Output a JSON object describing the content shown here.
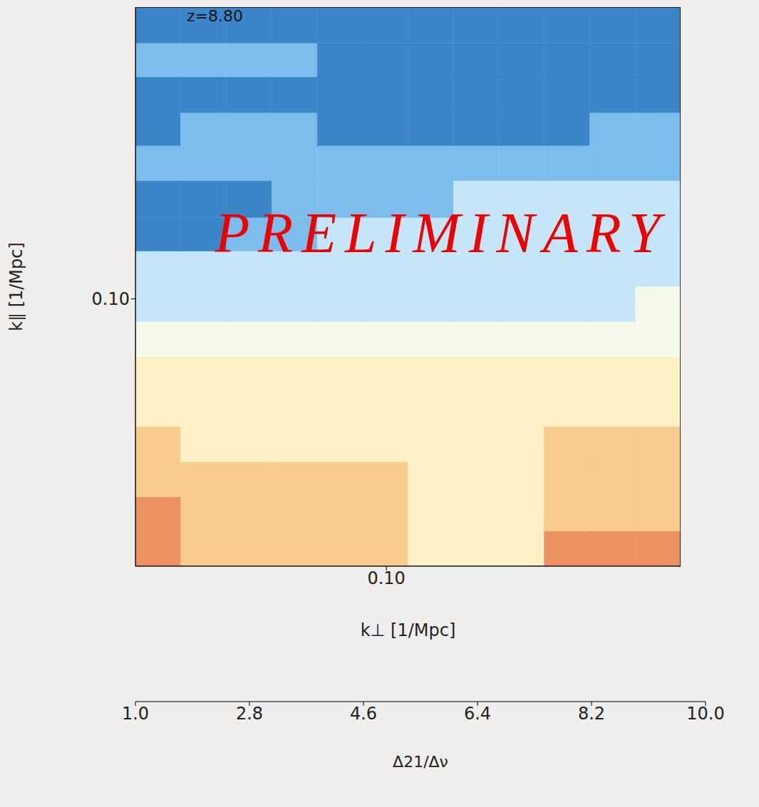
{
  "chart_data": {
    "type": "heatmap",
    "x_label": "k⊥ [1/Mpc]",
    "y_label": "k∥ [1/Mpc]",
    "annotations": [
      "z=8.80",
      "PRELIMINARY"
    ],
    "log": true,
    "xlim": [
      0.022,
      0.59
    ],
    "ylim": [
      0.065,
      0.16
    ],
    "xticks": [
      {
        "value": 0.1,
        "label": "0.10"
      }
    ],
    "yticks": [
      {
        "value": 0.1,
        "label": "0.10"
      }
    ],
    "x_edges": [
      0.022,
      0.0289,
      0.0381,
      0.0501,
      0.0659,
      0.0867,
      0.114,
      0.15,
      0.197,
      0.259,
      0.341,
      0.449,
      0.59
    ],
    "y_edges": [
      0.065,
      0.0688,
      0.0727,
      0.0769,
      0.0814,
      0.0861,
      0.0911,
      0.0964,
      0.102,
      0.108,
      0.114,
      0.121,
      0.128,
      0.135,
      0.143,
      0.151,
      0.16
    ],
    "cells": [
      [
        8.2,
        7.2,
        7.2,
        7.2,
        7.2,
        7.2,
        6.2,
        6.2,
        6.2,
        8.2,
        8.2,
        8.2
      ],
      [
        8.2,
        7.2,
        7.2,
        7.2,
        7.2,
        7.2,
        6.2,
        6.2,
        6.2,
        7.2,
        7.2,
        7.2
      ],
      [
        7.2,
        7.2,
        7.2,
        7.2,
        7.2,
        7.2,
        6.2,
        6.2,
        6.2,
        7.2,
        7.2,
        7.2
      ],
      [
        7.2,
        6.2,
        6.2,
        6.2,
        6.2,
        6.2,
        6.2,
        6.2,
        6.2,
        7.2,
        7.2,
        7.2
      ],
      [
        6.2,
        6.2,
        6.2,
        6.2,
        6.2,
        6.2,
        6.2,
        6.2,
        6.2,
        6.2,
        6.2,
        6.2
      ],
      [
        6.2,
        6.2,
        6.2,
        6.2,
        6.2,
        6.2,
        6.2,
        6.2,
        6.2,
        6.2,
        6.2,
        6.2
      ],
      [
        5.2,
        5.2,
        5.2,
        5.2,
        5.2,
        5.2,
        5.2,
        5.2,
        5.2,
        5.2,
        5.2,
        5.2
      ],
      [
        4.2,
        4.2,
        4.2,
        4.2,
        4.2,
        4.2,
        4.2,
        4.2,
        4.2,
        4.2,
        4.2,
        5.2
      ],
      [
        4.2,
        4.2,
        4.2,
        4.2,
        4.2,
        4.2,
        4.2,
        4.2,
        4.2,
        4.2,
        4.2,
        4.2
      ],
      [
        2.2,
        2.2,
        3.2,
        3.2,
        4.2,
        4.2,
        4.2,
        4.2,
        4.2,
        4.2,
        4.2,
        4.2
      ],
      [
        2.2,
        2.2,
        2.2,
        3.2,
        3.2,
        3.2,
        3.2,
        4.2,
        4.2,
        4.2,
        4.2,
        4.2
      ],
      [
        3.2,
        3.2,
        3.2,
        3.2,
        3.2,
        3.2,
        3.2,
        3.2,
        3.2,
        3.2,
        3.2,
        3.2
      ],
      [
        2.2,
        3.2,
        3.2,
        3.2,
        2.2,
        2.2,
        2.2,
        2.2,
        2.2,
        2.2,
        3.2,
        3.2
      ],
      [
        2.2,
        2.2,
        2.2,
        2.2,
        2.2,
        2.2,
        2.2,
        2.2,
        2.2,
        2.2,
        2.2,
        2.2
      ],
      [
        3.2,
        3.2,
        3.2,
        3.2,
        2.2,
        2.2,
        2.2,
        2.2,
        2.2,
        2.2,
        2.2,
        2.2
      ],
      [
        2.2,
        2.2,
        2.2,
        2.2,
        2.2,
        2.2,
        2.2,
        2.2,
        2.2,
        2.2,
        2.2,
        2.2
      ]
    ],
    "colorbar": {
      "label": "Δ21/Δν",
      "lim": [
        1,
        10
      ],
      "ticks": [
        {
          "value": 1,
          "label": "1.0"
        },
        2.8,
        4.6,
        6.4,
        8.2,
        {
          "value": 10,
          "label": "10.0"
        }
      ],
      "colors": [
        "#000000",
        "#2b6cb5",
        "#3b86c8",
        "#4c9fdc",
        "#7cbdee",
        "#9ccdf5",
        "#c5e6f8",
        "#dcf5fb",
        "#f4f9ea",
        "#fffbd5",
        "#fdf0c5",
        "#fcdca0",
        "#f8cc8c",
        "#f3b06f",
        "#ec9160",
        "#e66d53",
        "#da4f4a",
        "#c93842"
      ]
    }
  }
}
